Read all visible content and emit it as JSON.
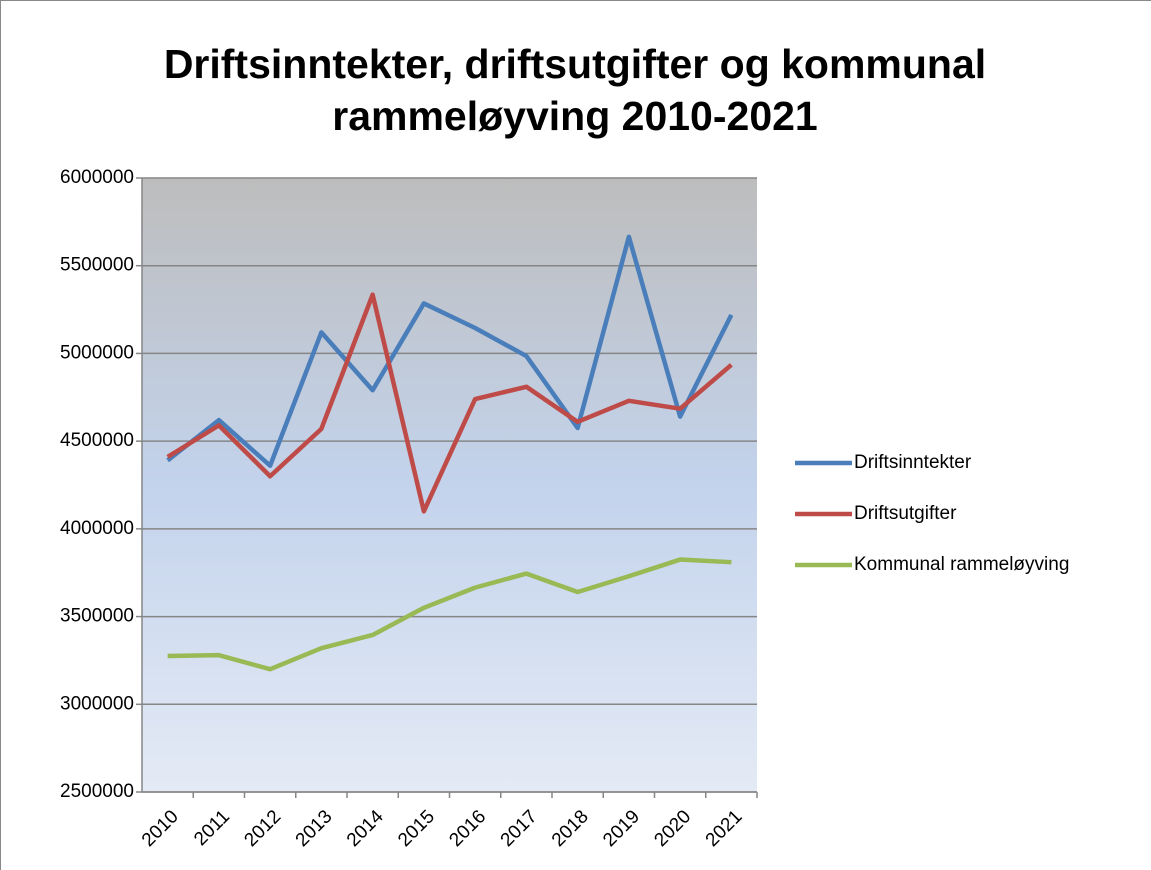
{
  "chart_data": {
    "type": "line",
    "title": "Driftsinntekter, driftsutgifter og kommunal rammeløyving 2010-2021",
    "categories": [
      "2010",
      "2011",
      "2012",
      "2013",
      "2014",
      "2015",
      "2016",
      "2017",
      "2018",
      "2019",
      "2020",
      "2021"
    ],
    "series": [
      {
        "name": "Driftsinntekter",
        "color": "#4a7ebb",
        "values": [
          4390000,
          4620000,
          4360000,
          5120000,
          4790000,
          5285000,
          5145000,
          4985000,
          4575000,
          5665000,
          4640000,
          5220000
        ]
      },
      {
        "name": "Driftsutgifter",
        "color": "#be4b48",
        "values": [
          4410000,
          4590000,
          4300000,
          4570000,
          5335000,
          4100000,
          4740000,
          4810000,
          4610000,
          4730000,
          4685000,
          4935000
        ]
      },
      {
        "name": "Kommunal rammeløyving",
        "color": "#98b954",
        "values": [
          3275000,
          3280000,
          3200000,
          3320000,
          3395000,
          3550000,
          3665000,
          3745000,
          3640000,
          3730000,
          3825000,
          3810000
        ]
      }
    ],
    "ylim": [
      2500000,
      6000000
    ],
    "yticks": [
      2500000,
      3000000,
      3500000,
      4000000,
      4500000,
      5000000,
      5500000,
      6000000
    ],
    "grid": true,
    "legend": "right"
  }
}
